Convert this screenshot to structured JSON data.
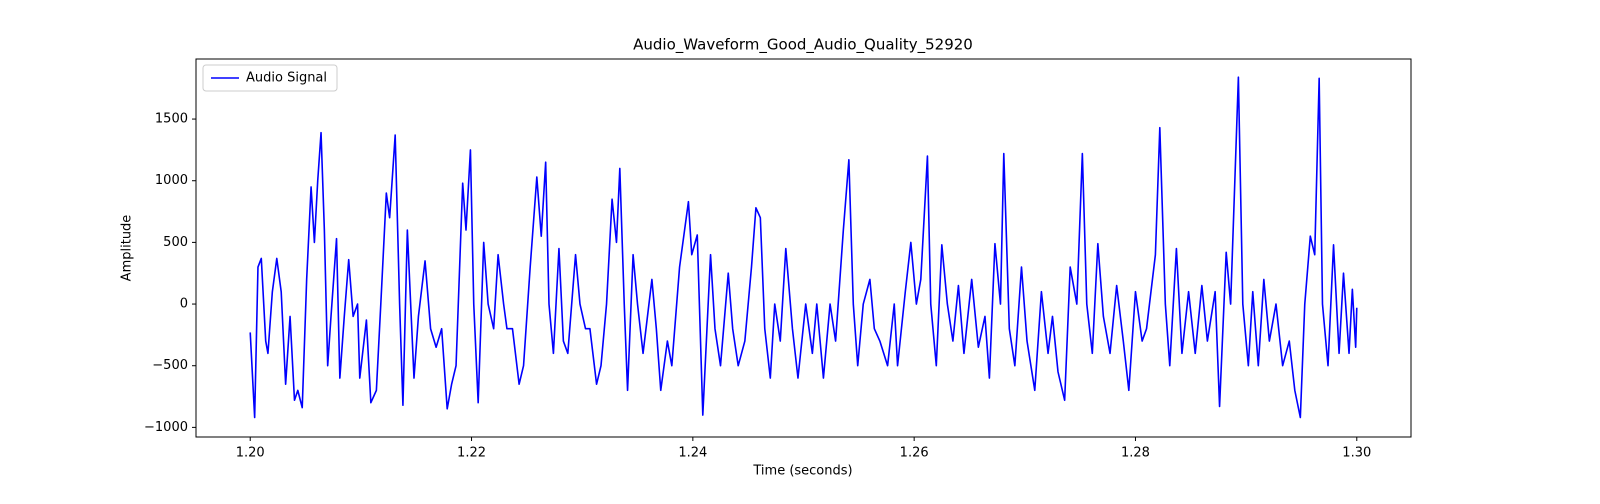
{
  "chart_data": {
    "type": "line",
    "title": "Audio_Waveform_Good_Audio_Quality_52920",
    "x_label": "Time (seconds)",
    "y_label": "Amplitude",
    "legend": "upper left",
    "grid": false,
    "xlim": [
      1.1951,
      1.3049
    ],
    "ylim": [
      -1078,
      1987
    ],
    "xticks": [
      {
        "value": 1.2,
        "label": "1.20"
      },
      {
        "value": 1.22,
        "label": "1.22"
      },
      {
        "value": 1.24,
        "label": "1.24"
      },
      {
        "value": 1.26,
        "label": "1.26"
      },
      {
        "value": 1.28,
        "label": "1.28"
      },
      {
        "value": 1.3,
        "label": "1.30"
      }
    ],
    "yticks": [
      {
        "value": -1000,
        "label": "−1000"
      },
      {
        "value": -500,
        "label": "−500"
      },
      0,
      500,
      1000,
      1500
    ],
    "x": [
      1.2,
      1.2004,
      1.2007,
      1.201,
      1.2014,
      1.2016,
      1.202,
      1.2024,
      1.2028,
      1.2032,
      1.2036,
      1.204,
      1.2043,
      1.2047,
      1.2051,
      1.2055,
      1.2058,
      1.2061,
      1.2064,
      1.2067,
      1.207,
      1.2073,
      1.2078,
      1.2081,
      1.2085,
      1.2089,
      1.2093,
      1.2097,
      1.2099,
      1.2105,
      1.2109,
      1.2114,
      1.2118,
      1.2123,
      1.2126,
      1.2131,
      1.2135,
      1.2138,
      1.2142,
      1.2145,
      1.2148,
      1.2152,
      1.2158,
      1.2163,
      1.2168,
      1.2173,
      1.2178,
      1.2182,
      1.2186,
      1.2192,
      1.2195,
      1.2199,
      1.2202,
      1.2206,
      1.2211,
      1.2215,
      1.222,
      1.2224,
      1.2229,
      1.2232,
      1.2237,
      1.2243,
      1.2247,
      1.2253,
      1.2259,
      1.2263,
      1.2267,
      1.227,
      1.2274,
      1.2279,
      1.2283,
      1.2287,
      1.2294,
      1.2298,
      1.2303,
      1.2307,
      1.2313,
      1.2317,
      1.2322,
      1.2327,
      1.2331,
      1.2334,
      1.2338,
      1.2341,
      1.2346,
      1.235,
      1.2355,
      1.2363,
      1.2367,
      1.2371,
      1.2377,
      1.2381,
      1.2388,
      1.2396,
      1.2399,
      1.2404,
      1.2409,
      1.2416,
      1.242,
      1.2425,
      1.2432,
      1.2436,
      1.2441,
      1.2447,
      1.2453,
      1.2457,
      1.2461,
      1.2465,
      1.247,
      1.2474,
      1.2479,
      1.2484,
      1.249,
      1.2495,
      1.2502,
      1.2508,
      1.2512,
      1.2518,
      1.2524,
      1.2529,
      1.2536,
      1.2541,
      1.2545,
      1.2549,
      1.2554,
      1.256,
      1.2564,
      1.2569,
      1.2576,
      1.2582,
      1.2585,
      1.2592,
      1.2597,
      1.2602,
      1.2606,
      1.2612,
      1.2615,
      1.262,
      1.2625,
      1.263,
      1.2635,
      1.264,
      1.2645,
      1.2652,
      1.2658,
      1.2664,
      1.2668,
      1.2673,
      1.2678,
      1.2681,
      1.2686,
      1.2691,
      1.2697,
      1.2702,
      1.2709,
      1.2715,
      1.2721,
      1.2725,
      1.273,
      1.2736,
      1.2741,
      1.2747,
      1.2752,
      1.2756,
      1.2761,
      1.2766,
      1.2771,
      1.2777,
      1.2783,
      1.2789,
      1.2794,
      1.28,
      1.2806,
      1.281,
      1.2818,
      1.2822,
      1.2827,
      1.2831,
      1.2837,
      1.2842,
      1.2848,
      1.2854,
      1.286,
      1.2865,
      1.2872,
      1.2876,
      1.2882,
      1.2886,
      1.2893,
      1.2897,
      1.2902,
      1.2906,
      1.2911,
      1.2916,
      1.2921,
      1.2927,
      1.2933,
      1.2939,
      1.2944,
      1.2949,
      1.2953,
      1.2958,
      1.2962,
      1.2966,
      1.2969,
      1.2974,
      1.2979,
      1.2984,
      1.2988,
      1.2993,
      1.2996,
      1.2999,
      1.3
    ],
    "series": [
      {
        "name": "Audio Signal",
        "color": "#0000ff",
        "values": [
          -230,
          -920,
          300,
          370,
          -300,
          -400,
          100,
          370,
          100,
          -650,
          -100,
          -780,
          -700,
          -840,
          200,
          950,
          500,
          1000,
          1390,
          600,
          -500,
          -100,
          530,
          -600,
          -100,
          360,
          -100,
          0,
          -600,
          -130,
          -800,
          -700,
          0,
          900,
          700,
          1370,
          0,
          -820,
          600,
          0,
          -600,
          -100,
          350,
          -200,
          -350,
          -200,
          -850,
          -650,
          -500,
          980,
          600,
          1250,
          0,
          -800,
          500,
          0,
          -200,
          400,
          0,
          -200,
          -200,
          -650,
          -500,
          300,
          1030,
          550,
          1150,
          0,
          -400,
          450,
          -300,
          -400,
          400,
          0,
          -200,
          -200,
          -650,
          -500,
          0,
          850,
          500,
          1100,
          0,
          -700,
          400,
          0,
          -400,
          200,
          -200,
          -700,
          -300,
          -500,
          300,
          830,
          400,
          560,
          -900,
          400,
          -200,
          -500,
          250,
          -200,
          -500,
          -300,
          300,
          780,
          700,
          -200,
          -600,
          0,
          -300,
          450,
          -200,
          -600,
          0,
          -400,
          0,
          -600,
          0,
          -300,
          600,
          1170,
          0,
          -500,
          0,
          200,
          -200,
          -300,
          -500,
          0,
          -500,
          100,
          500,
          0,
          200,
          1200,
          0,
          -500,
          480,
          0,
          -300,
          150,
          -400,
          200,
          -350,
          -100,
          -600,
          490,
          0,
          1220,
          -200,
          -500,
          300,
          -300,
          -700,
          100,
          -400,
          -100,
          -550,
          -780,
          300,
          0,
          1220,
          0,
          -400,
          490,
          -100,
          -400,
          150,
          -300,
          -700,
          100,
          -300,
          -200,
          400,
          1430,
          0,
          -500,
          450,
          -400,
          100,
          -400,
          150,
          -300,
          100,
          -830,
          420,
          0,
          1840,
          0,
          -500,
          100,
          -500,
          200,
          -300,
          0,
          -500,
          -300,
          -700,
          -920,
          0,
          550,
          400,
          1830,
          0,
          -500,
          480,
          -400,
          250,
          -400,
          120,
          -350,
          -30
        ]
      }
    ]
  }
}
